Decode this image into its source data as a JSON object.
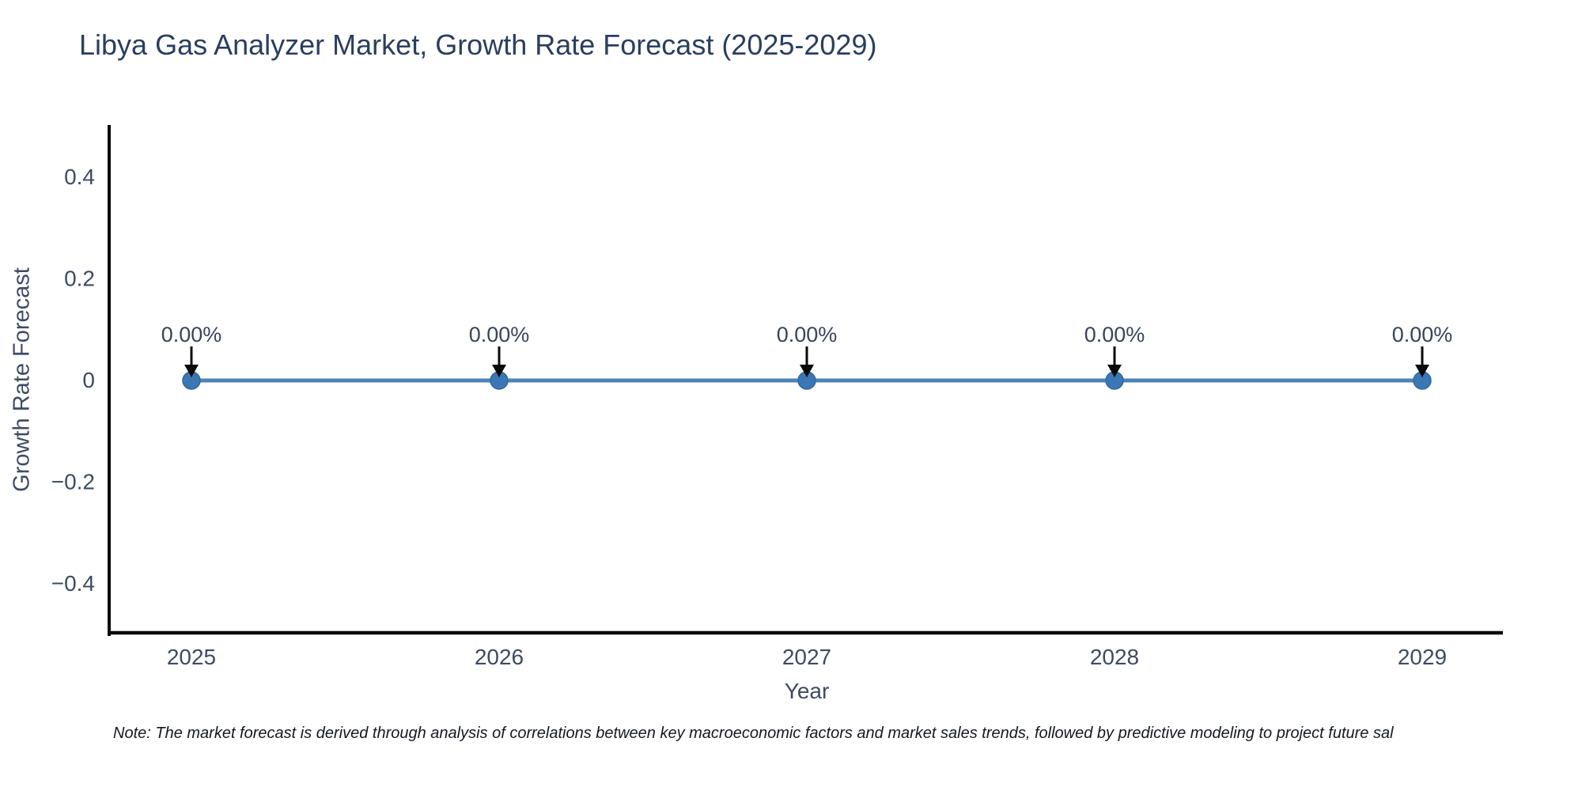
{
  "chart_data": {
    "type": "line",
    "title": "Libya Gas Analyzer Market, Growth Rate Forecast (2025-2029)",
    "xlabel": "Year",
    "ylabel": "Growth Rate Forecast",
    "x": [
      2025,
      2026,
      2027,
      2028,
      2029
    ],
    "y": [
      0,
      0,
      0,
      0,
      0
    ],
    "point_labels": [
      "0.00%",
      "0.00%",
      "0.00%",
      "0.00%",
      "0.00%"
    ],
    "xtick_labels": [
      "2025",
      "2026",
      "2027",
      "2028",
      "2029"
    ],
    "ytick_values": [
      0.4,
      0.2,
      0,
      -0.2,
      -0.4
    ],
    "ytick_labels": [
      "0.4",
      "0.2",
      "0",
      "−0.2",
      "−0.4"
    ],
    "ylim": [
      -0.5,
      0.5
    ],
    "grid": false,
    "legend": "none",
    "colors": {
      "line": "#4d84b8",
      "marker": "#3a77b4",
      "marker_edge": "#2e689f",
      "axis": "#0a0a0a",
      "tick_text": "#3e4b63",
      "annotation_text": "#38445a",
      "annotation_arrow": "#0a0a0a"
    }
  },
  "footnote": "Note: The market forecast is derived through analysis of correlations between key macroeconomic factors and market sales trends, followed by predictive modeling to project future sal"
}
